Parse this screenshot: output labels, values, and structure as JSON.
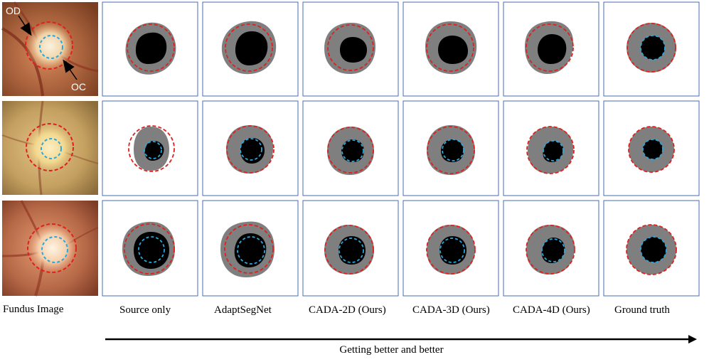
{
  "figure": {
    "fundus_labels": {
      "od": "OD",
      "oc": "OC"
    },
    "columns": [
      {
        "key": "fundus",
        "label": "Fundus Image"
      },
      {
        "key": "source",
        "label": "Source only"
      },
      {
        "key": "adapt",
        "label": "AdaptSegNet"
      },
      {
        "key": "cada2d",
        "label": "CADA-2D (Ours)"
      },
      {
        "key": "cada3d",
        "label": "CADA-3D (Ours)"
      },
      {
        "key": "cada4d",
        "label": "CADA-4D (Ours)"
      },
      {
        "key": "gt",
        "label": "Ground truth"
      }
    ],
    "arrow_caption": "Getting better and better",
    "colors": {
      "disc_fill": "#7f7f7f",
      "cup_fill": "#000000",
      "od_outline": "#e0201c",
      "oc_outline": "#2aa7dc",
      "panel_border": "#4a6bb5",
      "fundus_bg_1": "#a55f3a",
      "fundus_bg_2": "#c4a060",
      "fundus_bg_3": "#b86a48"
    }
  }
}
